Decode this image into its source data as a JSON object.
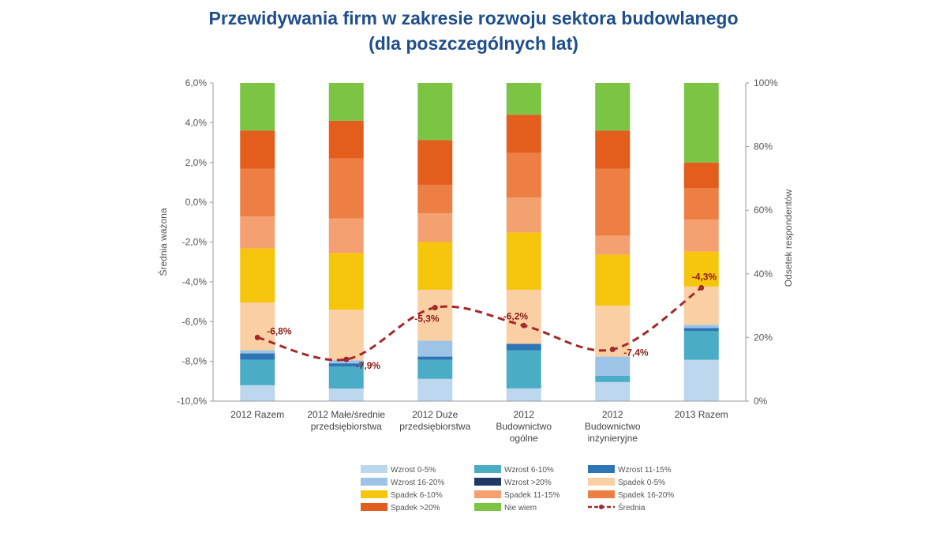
{
  "title_line1": "Przewidywania firm w zakresie rozwoju sektora budowlanego",
  "title_line2": "(dla poszczególnych lat)",
  "chart_data": {
    "type": "bar",
    "stacked": true,
    "ylabel_left": "Średnia ważona",
    "ylabel_right": "Odsetek respondentów",
    "yleft_ticks": [
      "6,0%",
      "4,0%",
      "2,0%",
      "0,0%",
      "-2,0%",
      "-4,0%",
      "-6,0%",
      "-8,0%",
      "-10,0%"
    ],
    "yleft_range": [
      -10,
      6
    ],
    "yright_ticks": [
      "100%",
      "80%",
      "60%",
      "40%",
      "20%",
      "0%"
    ],
    "yright_range": [
      0,
      100
    ],
    "categories": [
      [
        "2012 Razem"
      ],
      [
        "2012 Małe/średnie",
        "przedsiębiorstwa"
      ],
      [
        "2012 Duże",
        "przedsiębiorstwa"
      ],
      [
        "2012",
        "Budownictwo",
        "ogólne"
      ],
      [
        "2012",
        "Budownictwo",
        "inżynieryjne"
      ],
      [
        "2013 Razem"
      ]
    ],
    "series": [
      {
        "name": "Wzrost 0-5%",
        "color": "#bdd7ee",
        "values": [
          5,
          4,
          7,
          4,
          6,
          13
        ]
      },
      {
        "name": "Wzrost 6-10%",
        "color": "#4bacc6",
        "values": [
          8,
          7,
          6,
          12,
          2,
          9
        ]
      },
      {
        "name": "Wzrost 11-15%",
        "color": "#2e75b6",
        "values": [
          2,
          1,
          1,
          2,
          0,
          1
        ]
      },
      {
        "name": "Wzrost 16-20%",
        "color": "#9dc3e6",
        "values": [
          1,
          1,
          5,
          0,
          6,
          1
        ]
      },
      {
        "name": "Wzrost >20%",
        "color": "#1f3864",
        "values": [
          0,
          0,
          0,
          0,
          0,
          0
        ]
      },
      {
        "name": "Spadek 0-5%",
        "color": "#fbcfa4",
        "values": [
          15,
          16,
          16,
          17,
          16,
          12
        ]
      },
      {
        "name": "Spadek 6-10%",
        "color": "#f6c60c",
        "values": [
          17,
          18,
          15,
          18,
          16,
          11
        ]
      },
      {
        "name": "Spadek 11-15%",
        "color": "#f4a070",
        "values": [
          10,
          11,
          9,
          11,
          6,
          10
        ]
      },
      {
        "name": "Spadek 16-20%",
        "color": "#ee7f44",
        "values": [
          15,
          19,
          9,
          14,
          21,
          10
        ]
      },
      {
        "name": "Spadek >20%",
        "color": "#e35d1c",
        "values": [
          12,
          12,
          14,
          12,
          12,
          8
        ]
      },
      {
        "name": "Nie wiem",
        "color": "#7cc444",
        "values": [
          15,
          12,
          18,
          10,
          15,
          25
        ]
      }
    ],
    "line": {
      "name": "Średnia",
      "color": "#a32a2a",
      "values": [
        -6.8,
        -7.9,
        -5.3,
        -6.2,
        -7.4,
        -4.3
      ],
      "labels": [
        "-6,8%",
        "-7,9%",
        "-5,3%",
        "-6,2%",
        "-7,4%",
        "-4,3%"
      ]
    },
    "legend_position": "bottom"
  }
}
